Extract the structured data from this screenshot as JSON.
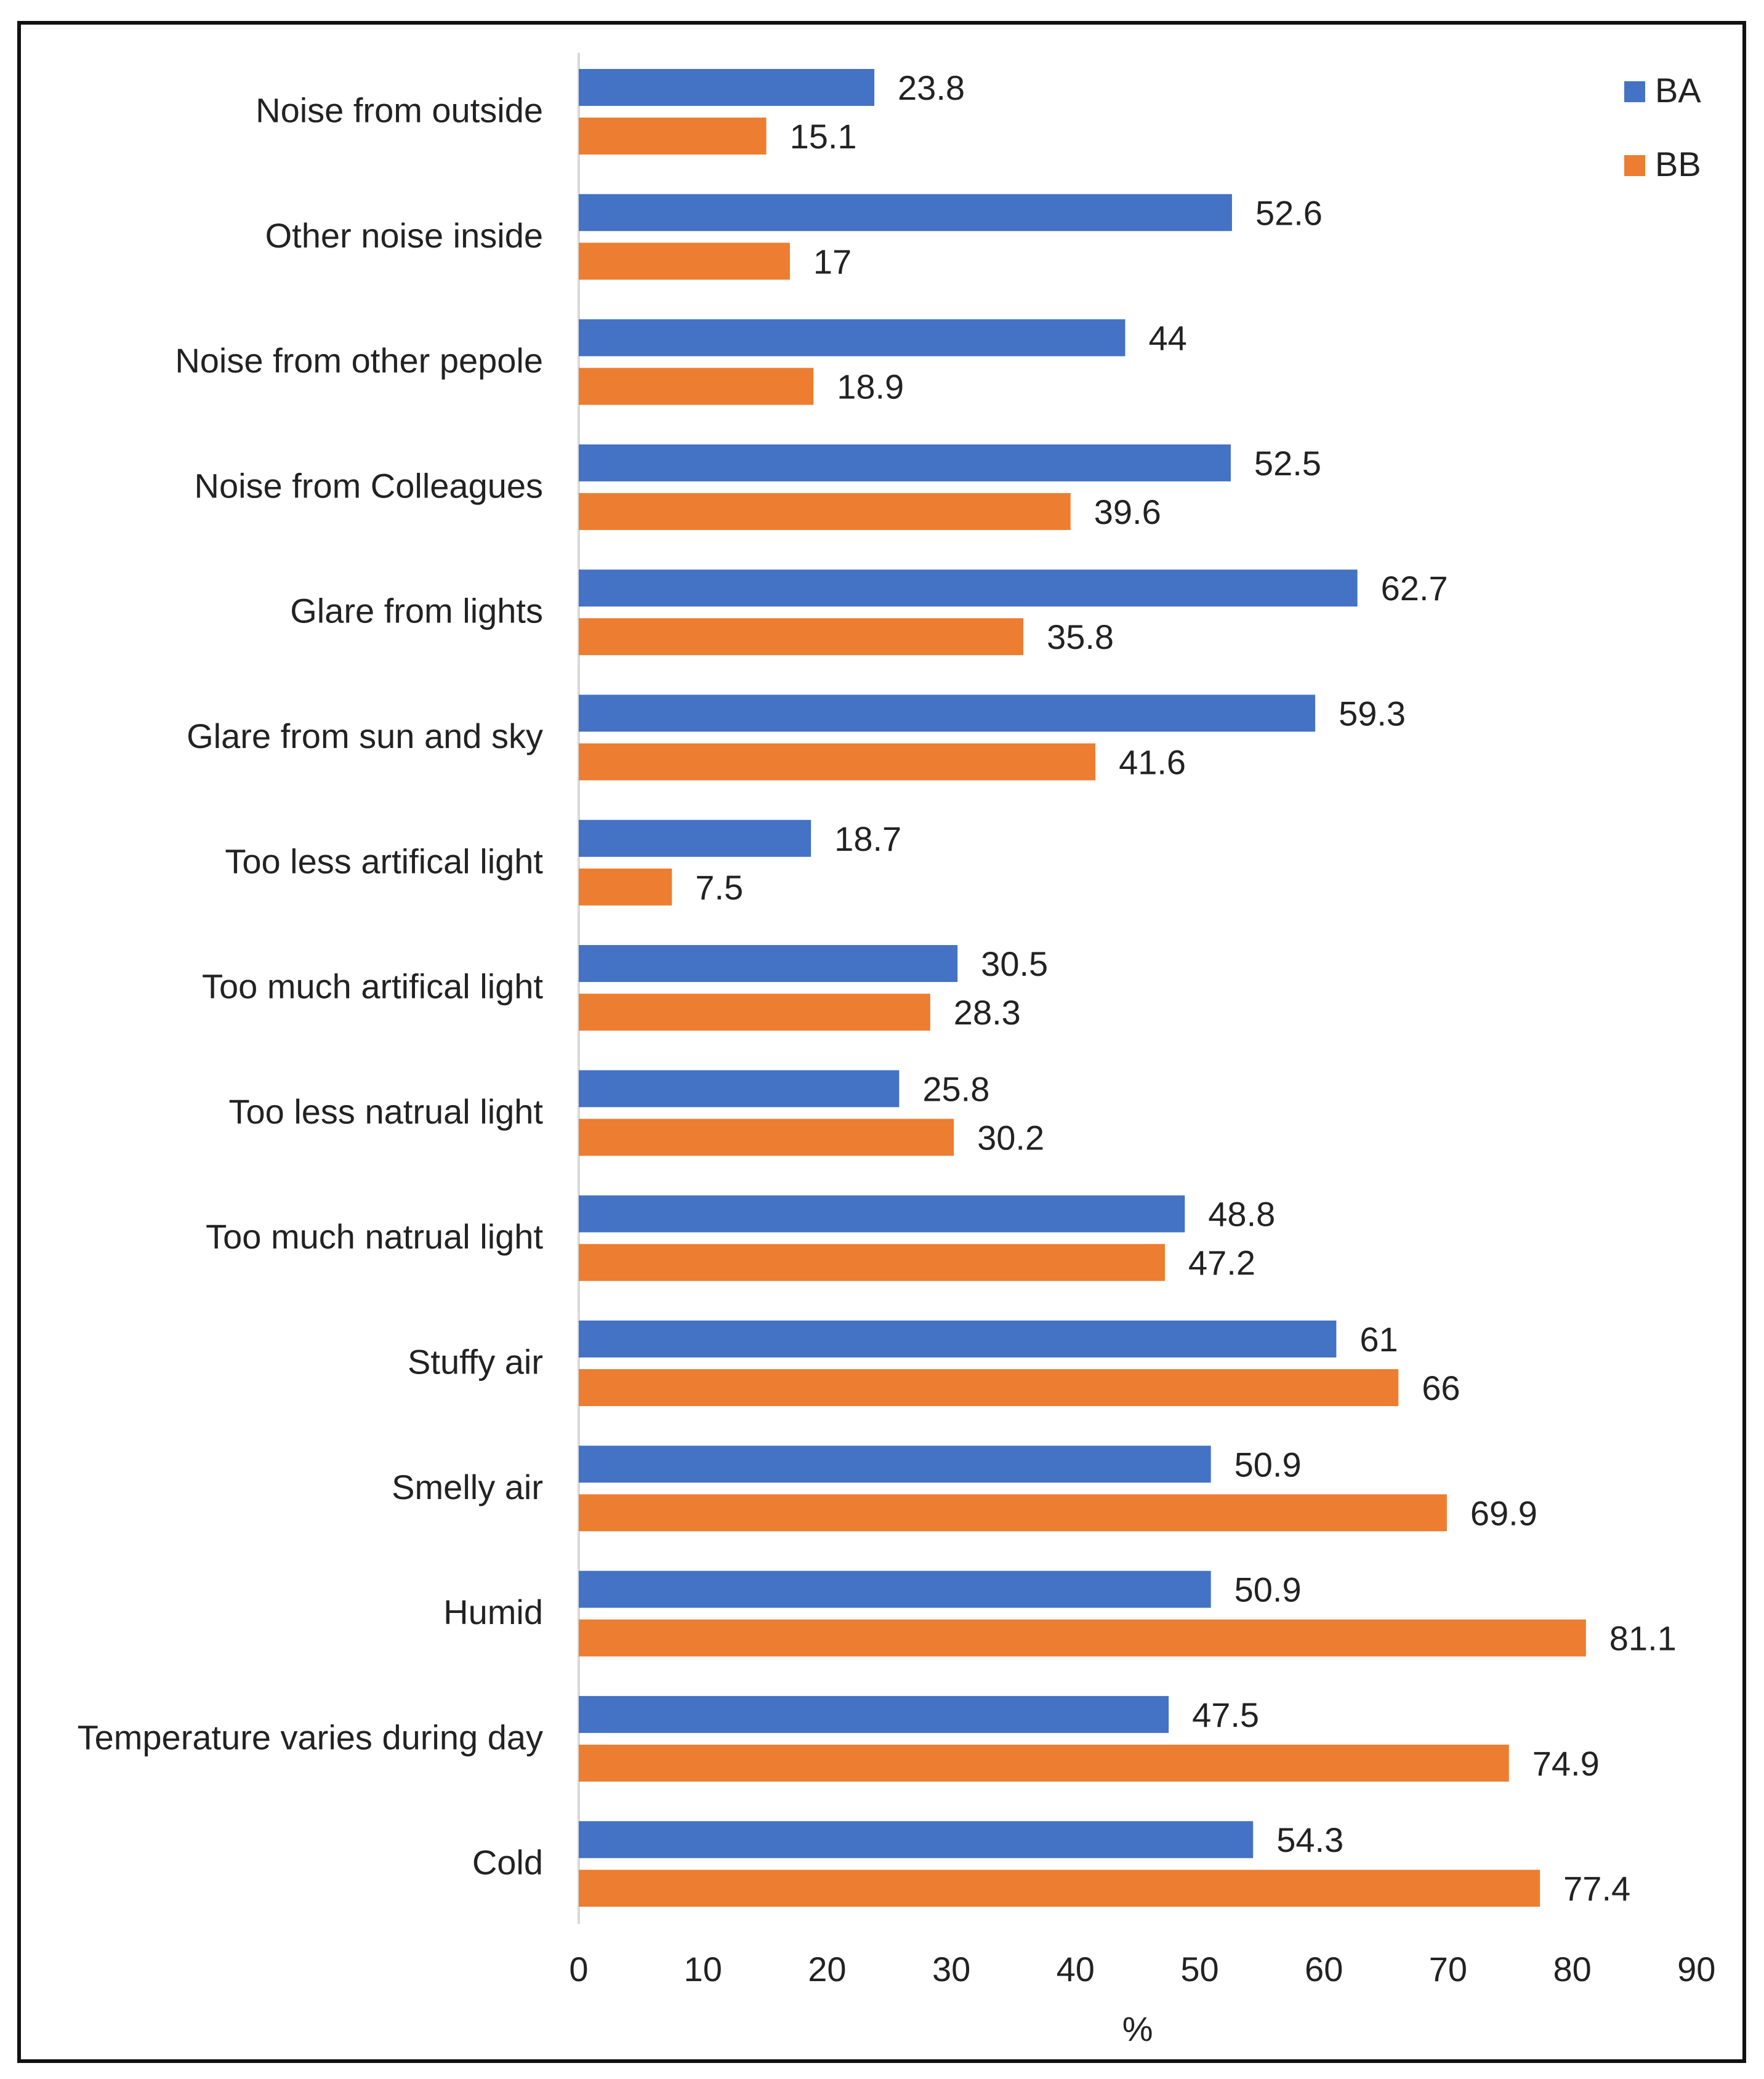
{
  "chart_data": {
    "type": "bar",
    "orientation": "horizontal",
    "title": "",
    "xlabel": "%",
    "ylabel": "",
    "xlim": [
      0,
      90
    ],
    "xticks": [
      "0",
      "10",
      "20",
      "30",
      "40",
      "50",
      "60",
      "70",
      "80",
      "90"
    ],
    "grid": false,
    "legend_position": "top-right",
    "categories": [
      "Noise from outside",
      "Other noise inside",
      "Noise from other pepole",
      "Noise from Colleagues",
      "Glare from lights",
      "Glare from sun and sky",
      "Too less artifical light",
      "Too much artifical light",
      "Too less natrual light",
      "Too much natrual light",
      "Stuffy air",
      "Smelly air",
      "Humid",
      "Temperature varies during day",
      "Cold"
    ],
    "series": [
      {
        "name": "BA",
        "color": "#4472C4",
        "values": [
          23.8,
          52.6,
          44,
          52.5,
          62.7,
          59.3,
          18.7,
          30.5,
          25.8,
          48.8,
          61,
          50.9,
          50.9,
          47.5,
          54.3
        ],
        "labels": [
          "23.8",
          "52.6",
          "44",
          "52.5",
          "62.7",
          "59.3",
          "18.7",
          "30.5",
          "25.8",
          "48.8",
          "61",
          "50.9",
          "50.9",
          "47.5",
          "54.3"
        ]
      },
      {
        "name": "BB",
        "color": "#ED7D31",
        "values": [
          15.1,
          17,
          18.9,
          39.6,
          35.8,
          41.6,
          7.5,
          28.3,
          30.2,
          47.2,
          66,
          69.9,
          81.1,
          74.9,
          77.4
        ],
        "labels": [
          "15.1",
          "17",
          "18.9",
          "39.6",
          "35.8",
          "41.6",
          "7.5",
          "28.3",
          "30.2",
          "47.2",
          "66",
          "69.9",
          "81.1",
          "74.9",
          "77.4"
        ]
      }
    ]
  }
}
